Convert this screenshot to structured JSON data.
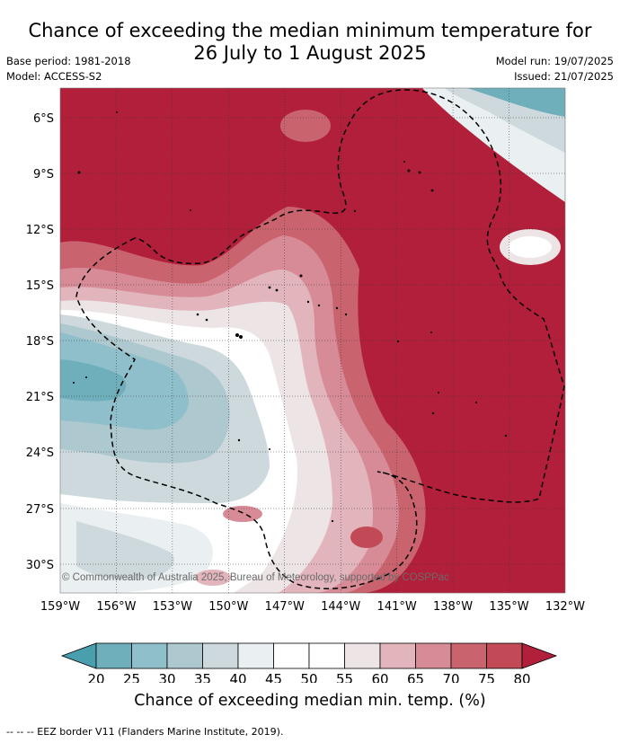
{
  "title_line1": "Chance of exceeding the median minimum temperature for",
  "title_line2": "26 July to 1 August 2025",
  "base_period": "Base period: 1981-2018",
  "model": "Model: ACCESS-S2",
  "model_run": "Model run: 19/07/2025",
  "issued": "Issued: 21/07/2025",
  "copyright": "© Commonwealth of Australia 2025, Bureau of Meteorology, supported by COSPPac",
  "lat_labels": [
    "6°S",
    "9°S",
    "12°S",
    "15°S",
    "18°S",
    "21°S",
    "24°S",
    "27°S",
    "30°S"
  ],
  "lon_labels": [
    "159°W",
    "156°W",
    "153°W",
    "150°W",
    "147°W",
    "144°W",
    "141°W",
    "138°W",
    "135°W",
    "132°W"
  ],
  "colorbar": {
    "ticks": [
      "20",
      "25",
      "30",
      "35",
      "40",
      "45",
      "50",
      "55",
      "60",
      "65",
      "70",
      "75",
      "80"
    ],
    "colors": [
      "#4a9fae",
      "#6eafbb",
      "#8fbfca",
      "#adc8cf",
      "#cdd9dd",
      "#eaeff1",
      "#ffffff",
      "#ffffff",
      "#ede4e6",
      "#e2b5bd",
      "#d78b97",
      "#c9646f",
      "#c24a57",
      "#b21f3a"
    ],
    "label": "Chance of exceeding median min. temp. (%)"
  },
  "footnote": "--  --  -- EEZ border V11 (Flanders Marine Institute, 2019)."
}
